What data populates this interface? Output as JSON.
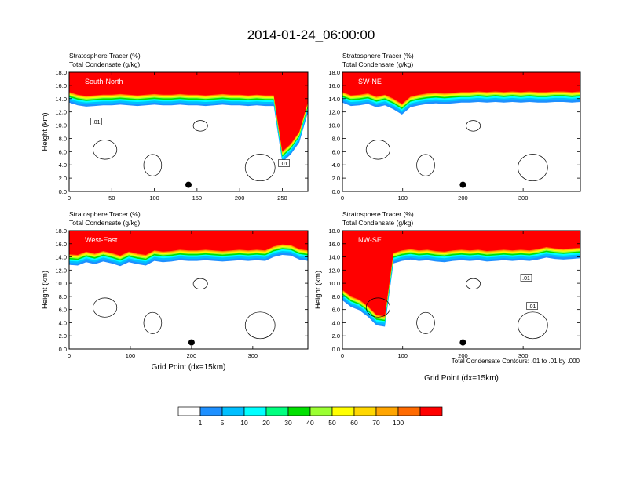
{
  "figure": {
    "title": "2014-01-24_06:00:00",
    "footnote": "Total Condensate Contours: .01 to .01 by .000"
  },
  "colors": {
    "palette": [
      "#ffffff",
      "#1e90ff",
      "#00bfff",
      "#00ffff",
      "#00ff7f",
      "#00e000",
      "#9bff32",
      "#ffff00",
      "#ffd700",
      "#ffa500",
      "#ff6a00",
      "#ff0000"
    ],
    "contour": "#000000",
    "marker": "#000000"
  },
  "colorbar": {
    "labels": [
      "1",
      "5",
      "10",
      "20",
      "30",
      "40",
      "50",
      "60",
      "70",
      "100"
    ]
  },
  "chart_data": [
    {
      "type": "heatmap",
      "panel_label": "South-North",
      "subtitle_line1": "Stratosphere Tracer   (%)",
      "subtitle_line2": "Total Condensate   (g/kg)",
      "ylabel": "Height (km)",
      "xlabel": "",
      "xlim": [
        0,
        280
      ],
      "ylim": [
        0,
        18
      ],
      "xticks": [
        "0",
        "50",
        "100",
        "150",
        "200",
        "250"
      ],
      "xtick_values": [
        0,
        50,
        100,
        150,
        200,
        250
      ],
      "yticks": [
        "0.0",
        "2.0",
        "4.0",
        "6.0",
        "8.0",
        "10.0",
        "12.0",
        "14.0",
        "16.0",
        "18.0"
      ],
      "tracer_base_km": [
        15.0,
        14.6,
        14.4,
        14.5,
        14.6,
        14.6,
        14.7,
        14.6,
        14.5,
        14.6,
        14.7,
        14.6,
        14.6,
        14.7,
        14.6,
        14.6,
        14.5,
        14.6,
        14.7,
        14.6,
        14.6,
        14.5,
        14.6,
        14.5,
        14.5,
        6.0,
        7.2,
        9.0,
        13.5
      ],
      "marker": {
        "x": 140,
        "y": 1.0
      },
      "contour_labels": [
        {
          "text": ".01",
          "x": 32,
          "y": 10.5
        },
        {
          "text": ".01",
          "x": 252,
          "y": 4.2
        }
      ]
    },
    {
      "type": "heatmap",
      "panel_label": "SW-NE",
      "subtitle_line1": "Stratosphere Tracer   (%)",
      "subtitle_line2": "Total Condensate   (g/kg)",
      "ylabel": "",
      "xlabel": "",
      "xlim": [
        0,
        395
      ],
      "ylim": [
        0,
        18
      ],
      "xticks": [
        "0",
        "100",
        "200",
        "300"
      ],
      "xtick_values": [
        0,
        100,
        200,
        300
      ],
      "yticks": [
        "0.0",
        "2.0",
        "4.0",
        "6.0",
        "8.0",
        "10.0",
        "12.0",
        "14.0",
        "16.0",
        "18.0"
      ],
      "tracer_base_km": [
        15.0,
        14.5,
        14.6,
        14.8,
        14.3,
        14.6,
        14.0,
        13.2,
        14.3,
        14.6,
        14.8,
        14.9,
        14.8,
        14.9,
        15.0,
        15.0,
        15.1,
        15.0,
        15.1,
        15.0,
        15.1,
        15.0,
        15.1,
        15.0,
        15.0,
        15.1,
        15.1,
        15.0,
        15.1
      ],
      "marker": {
        "x": 200,
        "y": 1.0
      },
      "contour_labels": []
    },
    {
      "type": "heatmap",
      "panel_label": "West-East",
      "subtitle_line1": "Stratosphere Tracer   (%)",
      "subtitle_line2": "Total Condensate   (g/kg)",
      "ylabel": "Height (km)",
      "xlabel": "Grid Point (dx=15km)",
      "xlim": [
        0,
        390
      ],
      "ylim": [
        0,
        18
      ],
      "xticks": [
        "0",
        "100",
        "200",
        "300"
      ],
      "xtick_values": [
        0,
        100,
        200,
        300
      ],
      "yticks": [
        "0.0",
        "2.0",
        "4.0",
        "6.0",
        "8.0",
        "10.0",
        "12.0",
        "14.0",
        "16.0",
        "18.0"
      ],
      "tracer_base_km": [
        14.4,
        14.3,
        14.8,
        14.5,
        14.9,
        14.6,
        14.2,
        14.8,
        14.5,
        14.3,
        15.0,
        14.8,
        14.9,
        15.1,
        15.0,
        15.0,
        15.1,
        15.0,
        14.9,
        15.0,
        15.1,
        15.0,
        15.1,
        15.0,
        15.6,
        15.9,
        15.8,
        15.2,
        15.0
      ],
      "marker": {
        "x": 200,
        "y": 1.0
      },
      "contour_labels": []
    },
    {
      "type": "heatmap",
      "panel_label": "NW-SE",
      "subtitle_line1": "Stratosphere Tracer   (%)",
      "subtitle_line2": "Total Condensate   (g/kg)",
      "ylabel": "Height (km)",
      "xlabel": "Grid Point (dx=15km)",
      "xlim": [
        0,
        395
      ],
      "ylim": [
        0,
        18
      ],
      "xticks": [
        "0",
        "100",
        "200",
        "300"
      ],
      "xtick_values": [
        0,
        100,
        200,
        300
      ],
      "yticks": [
        "0.0",
        "2.0",
        "4.0",
        "6.0",
        "8.0",
        "10.0",
        "12.0",
        "14.0",
        "16.0",
        "18.0"
      ],
      "tracer_base_km": [
        9.0,
        8.0,
        7.5,
        6.5,
        5.2,
        5.0,
        14.6,
        15.0,
        15.2,
        15.0,
        15.1,
        14.9,
        14.8,
        15.0,
        15.1,
        15.0,
        15.1,
        14.9,
        15.0,
        15.1,
        15.0,
        15.1,
        15.0,
        15.2,
        15.5,
        15.3,
        15.2,
        15.3,
        15.4
      ],
      "marker": {
        "x": 200,
        "y": 1.0
      },
      "contour_labels": [
        {
          "text": ".01",
          "x": 305,
          "y": 10.8
        },
        {
          "text": ".01",
          "x": 315,
          "y": 6.5
        }
      ]
    }
  ]
}
